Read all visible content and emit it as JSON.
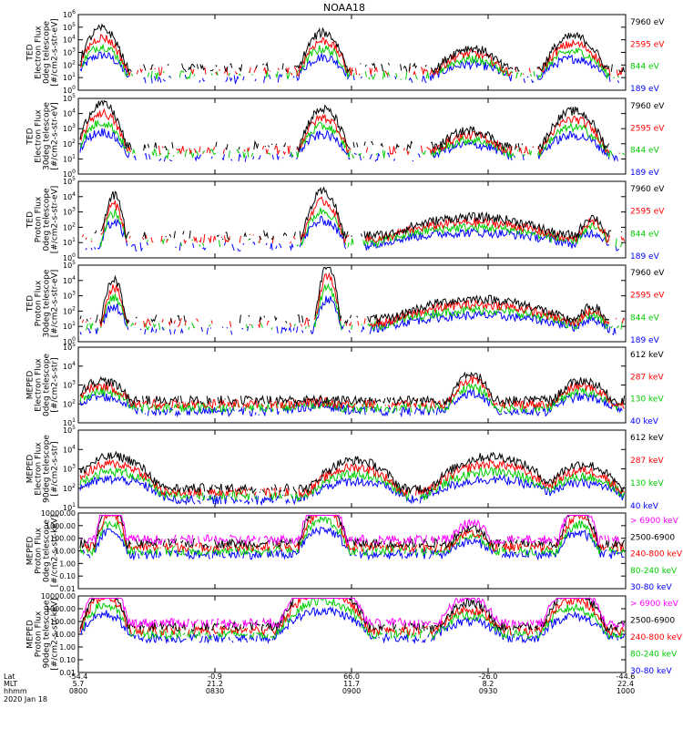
{
  "chart_data": {
    "type": "line",
    "title": "NOAA18",
    "x_axis": {
      "rows": [
        {
          "label": "Lat",
          "values": [
            "-54.4",
            "-0.9",
            "66.0",
            "-26.0",
            "-44.6"
          ]
        },
        {
          "label": "MLT",
          "values": [
            "5.7",
            "21.2",
            "11.7",
            "8.2",
            "22.4"
          ]
        },
        {
          "label": "hhmm",
          "values": [
            "0800",
            "0830",
            "0900",
            "0930",
            "1000"
          ]
        }
      ],
      "date": "2020 Jan 18",
      "time_range": [
        "08:00",
        "10:00"
      ]
    },
    "panels": [
      {
        "ylabel": [
          "TED",
          "Electron Flux",
          "0deg telescope",
          "[#/cm2-s-str-eV]"
        ],
        "scale": "log",
        "ylim": [
          1,
          1000000
        ],
        "ticks": [
          "10^0",
          "10^1",
          "10^2",
          "10^3",
          "10^4",
          "10^5",
          "10^6"
        ],
        "series": [
          {
            "name": "7960 eV",
            "color": "#000000"
          },
          {
            "name": "2595 eV",
            "color": "#ff0000"
          },
          {
            "name": "844 eV",
            "color": "#00cc00"
          },
          {
            "name": "189 eV",
            "color": "#0000ff"
          }
        ]
      },
      {
        "ylabel": [
          "TED",
          "Electron Flux",
          "30deg telescope",
          "[#/cm2-s-str-eV]"
        ],
        "scale": "log",
        "ylim": [
          1,
          100000
        ],
        "ticks": [
          "10^0",
          "10^1",
          "10^2",
          "10^3",
          "10^4",
          "10^5"
        ],
        "series": [
          {
            "name": "7960 eV",
            "color": "#000000"
          },
          {
            "name": "2595 eV",
            "color": "#ff0000"
          },
          {
            "name": "844 eV",
            "color": "#00cc00"
          },
          {
            "name": "189 eV",
            "color": "#0000ff"
          }
        ]
      },
      {
        "ylabel": [
          "TED",
          "Proton Flux",
          "0deg telescope",
          "[#/cm2-s-str-eV]"
        ],
        "scale": "log",
        "ylim": [
          1,
          100000
        ],
        "ticks": [
          "10^0",
          "10^1",
          "10^2",
          "10^3",
          "10^4",
          "10^5"
        ],
        "series": [
          {
            "name": "7960 eV",
            "color": "#000000"
          },
          {
            "name": "2595 eV",
            "color": "#ff0000"
          },
          {
            "name": "844 eV",
            "color": "#00cc00"
          },
          {
            "name": "189 eV",
            "color": "#0000ff"
          }
        ]
      },
      {
        "ylabel": [
          "TED",
          "Proton Flux",
          "30deg telescope",
          "[#/cm2-s-str-eV]"
        ],
        "scale": "log",
        "ylim": [
          1,
          100000
        ],
        "ticks": [
          "10^0",
          "10^1",
          "10^2",
          "10^3",
          "10^4",
          "10^5"
        ],
        "series": [
          {
            "name": "7960 eV",
            "color": "#000000"
          },
          {
            "name": "2595 eV",
            "color": "#ff0000"
          },
          {
            "name": "844 eV",
            "color": "#00cc00"
          },
          {
            "name": "189 eV",
            "color": "#0000ff"
          }
        ]
      },
      {
        "ylabel": [
          "MEPED",
          "Electron Flux",
          "0deg telescope",
          "[#/cm2-s-str]"
        ],
        "scale": "log",
        "ylim": [
          10,
          100000
        ],
        "ticks": [
          "10^1",
          "10^2",
          "10^3",
          "10^4",
          "10^5"
        ],
        "series": [
          {
            "name": "612 keV",
            "color": "#000000"
          },
          {
            "name": "287 keV",
            "color": "#ff0000"
          },
          {
            "name": "130 keV",
            "color": "#00cc00"
          },
          {
            "name": "40 keV",
            "color": "#0000ff"
          }
        ]
      },
      {
        "ylabel": [
          "MEPED",
          "Electron Flux",
          "90deg telescope",
          "[#/cm2-s-str]"
        ],
        "scale": "log",
        "ylim": [
          10,
          100000
        ],
        "ticks": [
          "10^1",
          "10^2",
          "10^3",
          "10^4",
          "10^5"
        ],
        "series": [
          {
            "name": "612 keV",
            "color": "#000000"
          },
          {
            "name": "287 keV",
            "color": "#ff0000"
          },
          {
            "name": "130 keV",
            "color": "#00cc00"
          },
          {
            "name": "40 keV",
            "color": "#0000ff"
          }
        ]
      },
      {
        "ylabel": [
          "MEPED",
          "Proton Flux",
          "0deg telescope",
          "[#/cm2-s-str-keV]"
        ],
        "scale": "log",
        "ylim": [
          0.01,
          10000
        ],
        "ticks": [
          "0.01",
          "0.10",
          "1.00",
          "10.00",
          "100.00",
          "1000.00",
          "10000.00"
        ],
        "series": [
          {
            "name": "> 6900 keV",
            "color": "#ff00ff"
          },
          {
            "name": "2500-6900",
            "color": "#000000"
          },
          {
            "name": "240-800 keV",
            "color": "#ff0000"
          },
          {
            "name": "80-240 keV",
            "color": "#00cc00"
          },
          {
            "name": "30-80 keV",
            "color": "#0000ff"
          }
        ]
      },
      {
        "ylabel": [
          "MEPED",
          "Proton Flux",
          "90deg telescope",
          "[#/cm2-s-str-keV]"
        ],
        "scale": "log",
        "ylim": [
          0.01,
          10000
        ],
        "ticks": [
          "0.01",
          "0.10",
          "1.00",
          "10.00",
          "100.00",
          "1000.00",
          "10000.00"
        ],
        "series": [
          {
            "name": "> 6900 keV",
            "color": "#ff00ff"
          },
          {
            "name": "2500-6900",
            "color": "#000000"
          },
          {
            "name": "240-800 keV",
            "color": "#ff0000"
          },
          {
            "name": "80-240 keV",
            "color": "#00cc00"
          },
          {
            "name": "30-80 keV",
            "color": "#0000ff"
          }
        ]
      }
    ]
  }
}
